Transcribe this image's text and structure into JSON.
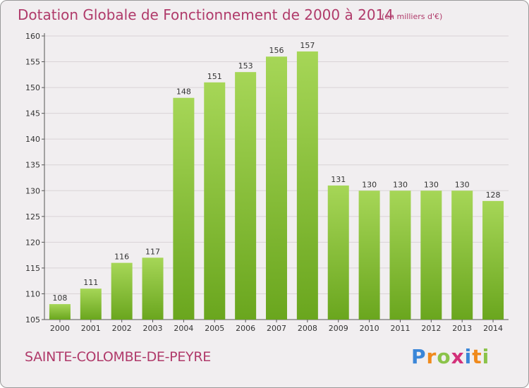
{
  "header": {
    "title": "Dotation Globale de Fonctionnement de 2000 à 2014",
    "subtitle": "(en milliers d'€)"
  },
  "footer": {
    "commune": "SAINTE-COLOMBE-DE-PEYRE",
    "logo": {
      "letters": [
        "P",
        "r",
        "o",
        "x",
        "i",
        "t",
        "i"
      ],
      "colors": [
        "#3a86d8",
        "#f08a1c",
        "#8bc34a",
        "#d3307a",
        "#3a86d8",
        "#f08a1c",
        "#8bc34a"
      ]
    }
  },
  "colors": {
    "bar_light": "#a6d657",
    "bar_dark": "#6aa61e",
    "title": "#b03a6a",
    "grid": "#d9d3d6"
  },
  "chart_data": {
    "type": "bar",
    "categories": [
      "2000",
      "2001",
      "2002",
      "2003",
      "2004",
      "2005",
      "2006",
      "2007",
      "2008",
      "2009",
      "2010",
      "2011",
      "2012",
      "2013",
      "2014"
    ],
    "values": [
      108,
      111,
      116,
      117,
      148,
      151,
      153,
      156,
      157,
      131,
      130,
      130,
      130,
      130,
      128
    ],
    "ylim": [
      105,
      160
    ],
    "yticks": [
      105,
      110,
      115,
      120,
      125,
      130,
      135,
      140,
      145,
      150,
      155,
      160
    ],
    "grid": true,
    "data_labels": true
  }
}
